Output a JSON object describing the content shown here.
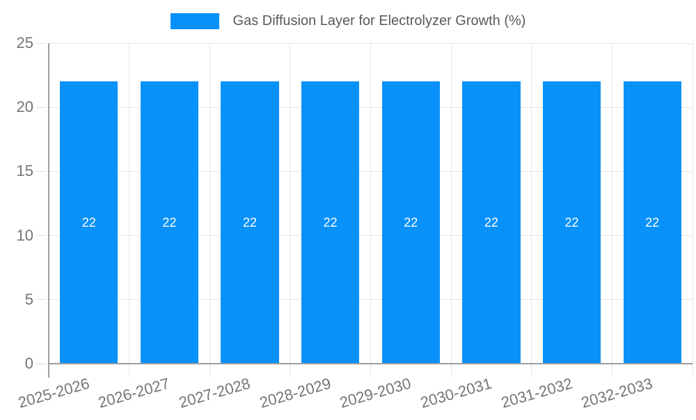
{
  "colors": {
    "bar": "#0891f8",
    "grid": "#e6e6e6",
    "stub": "#dcdcdc",
    "axis": "#9e9e9e",
    "tick_text": "#757575",
    "title_text": "#58595b",
    "value_label": "#ffffff"
  },
  "chart_data": {
    "type": "bar",
    "title": "Gas Diffusion Layer for Electrolyzer Growth (%)",
    "xlabel": "",
    "ylabel": "",
    "categories": [
      "2025-2026",
      "2026-2027",
      "2027-2028",
      "2028-2029",
      "2029-2030",
      "2030-2031",
      "2031-2032",
      "2032-2033"
    ],
    "values": [
      22,
      22,
      22,
      22,
      22,
      22,
      22,
      22
    ],
    "value_labels": [
      "22",
      "22",
      "22",
      "22",
      "22",
      "22",
      "22",
      "22"
    ],
    "ylim": [
      0,
      25
    ],
    "yticks": [
      0,
      5,
      10,
      15,
      20,
      25
    ],
    "grid": true,
    "legend_position": "top"
  }
}
